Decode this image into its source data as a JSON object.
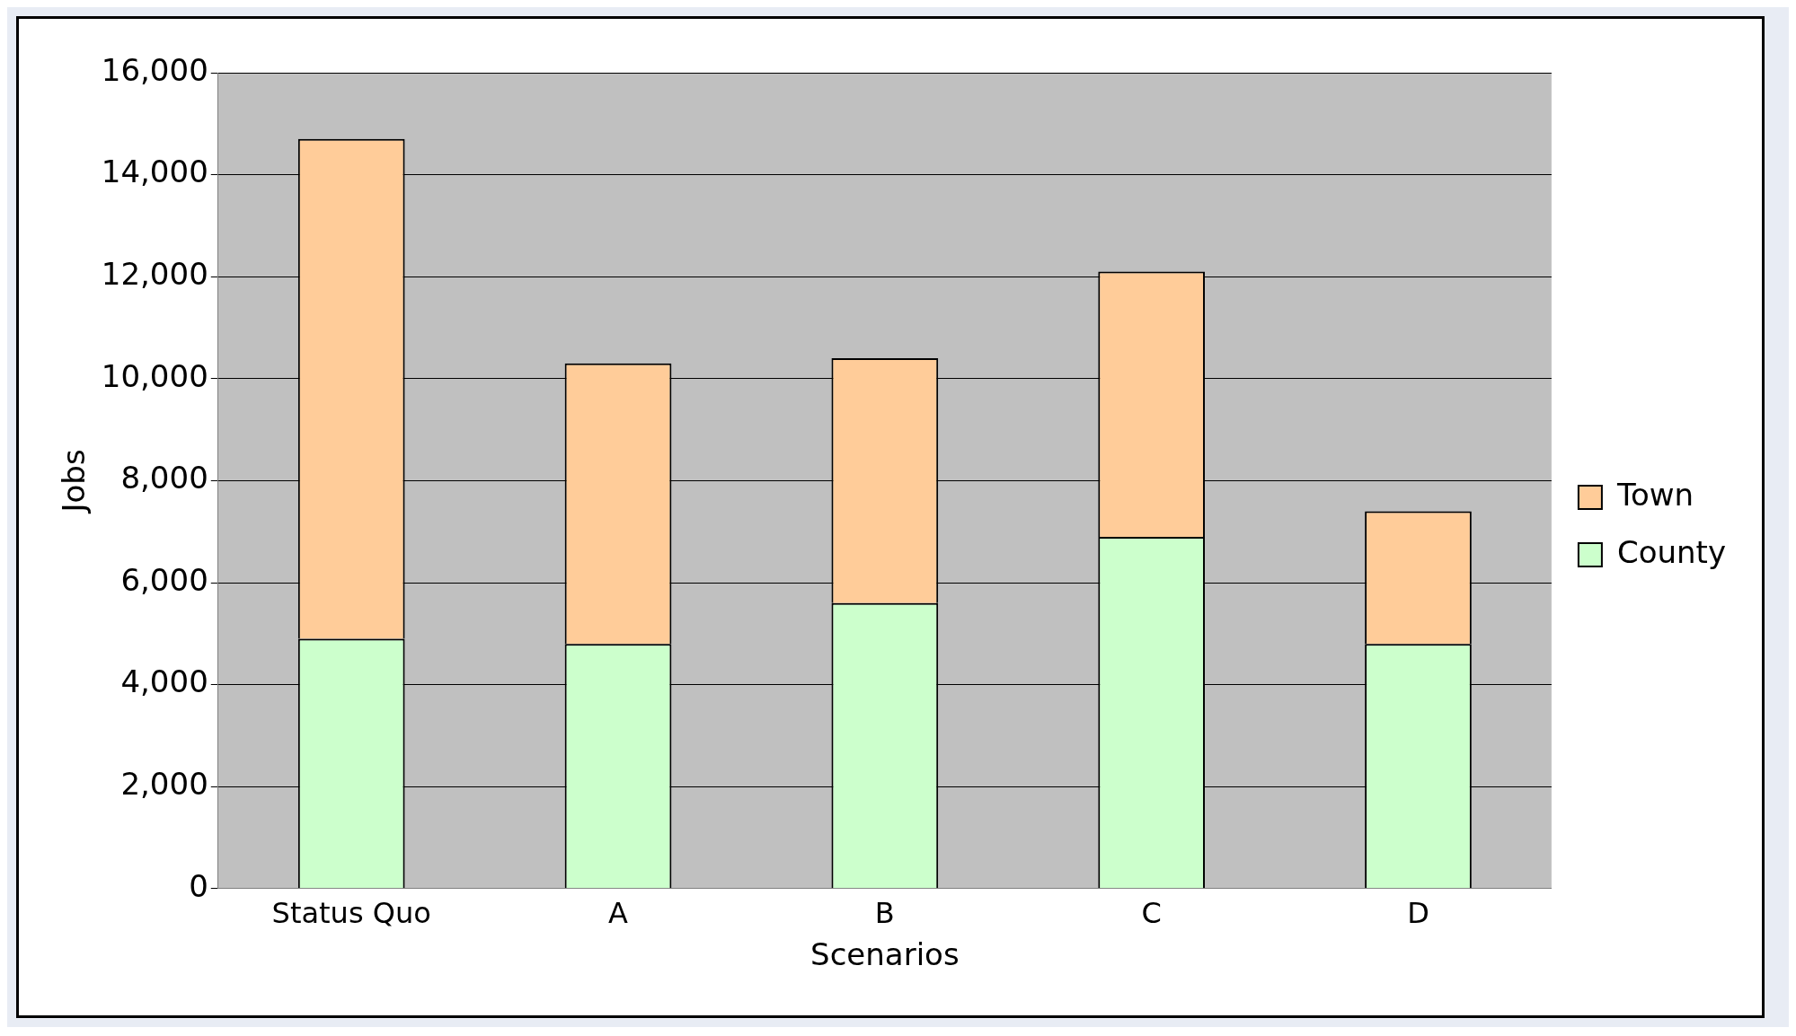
{
  "chart_data": {
    "type": "bar",
    "stacked": true,
    "xlabel": "Scenarios",
    "ylabel": "Jobs",
    "categories": [
      "Status Quo",
      "A",
      "B",
      "C",
      "D"
    ],
    "series": [
      {
        "name": "County",
        "color": "#ccffcc",
        "values": [
          4900,
          4800,
          5600,
          6900,
          4800
        ]
      },
      {
        "name": "Town",
        "color": "#ffcc99",
        "values": [
          9800,
          5500,
          4800,
          5200,
          2600
        ]
      }
    ],
    "ylim": [
      0,
      16000
    ],
    "yticks": [
      {
        "value": 0,
        "label": "0"
      },
      {
        "value": 2000,
        "label": "2,000"
      },
      {
        "value": 4000,
        "label": "4,000"
      },
      {
        "value": 6000,
        "label": "6,000"
      },
      {
        "value": 8000,
        "label": "8,000"
      },
      {
        "value": 10000,
        "label": "10,000"
      },
      {
        "value": 12000,
        "label": "12,000"
      },
      {
        "value": 14000,
        "label": "14,000"
      },
      {
        "value": 16000,
        "label": "16,000"
      }
    ],
    "grid": "y",
    "legend": "right"
  }
}
